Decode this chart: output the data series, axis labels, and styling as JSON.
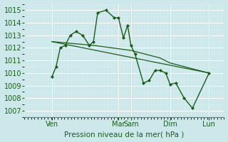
{
  "xlabel": "Pression niveau de la mer( hPa )",
  "bg_color": "#cce8ea",
  "grid_color": "#b0d0d4",
  "line_color": "#1a5c1a",
  "marker_color": "#1a5c1a",
  "vline_color": "#5a8a5a",
  "ylim": [
    1006.5,
    1015.5
  ],
  "yticks": [
    1007,
    1008,
    1009,
    1010,
    1011,
    1012,
    1013,
    1014,
    1015
  ],
  "xlim": [
    0,
    240
  ],
  "day_positions": [
    33,
    113,
    128,
    175,
    222
  ],
  "day_labels": [
    "Ven",
    "Mar",
    "Sam",
    "Dim",
    "Lun"
  ],
  "vline_x": [
    33,
    113,
    128,
    175,
    222
  ],
  "series1_x": [
    33,
    38,
    43,
    49,
    55,
    62,
    70,
    78,
    83,
    88,
    98,
    108,
    113,
    119,
    124,
    128,
    133,
    143,
    150,
    157,
    163,
    170,
    175,
    182,
    192,
    202,
    222
  ],
  "series1_y": [
    1009.7,
    1010.5,
    1012.0,
    1012.2,
    1013.0,
    1013.3,
    1013.0,
    1012.2,
    1012.5,
    1014.8,
    1015.0,
    1014.4,
    1014.4,
    1012.8,
    1013.8,
    1012.2,
    1011.5,
    1009.2,
    1009.4,
    1010.2,
    1010.2,
    1010.0,
    1009.1,
    1009.2,
    1008.0,
    1007.2,
    1010.0
  ],
  "series2_x": [
    33,
    83,
    128,
    163,
    175,
    210,
    222
  ],
  "series2_y": [
    1012.5,
    1012.2,
    1011.8,
    1011.2,
    1010.8,
    1010.2,
    1010.0
  ],
  "series3_x": [
    33,
    222
  ],
  "series3_y": [
    1012.5,
    1010.0
  ],
  "tick_color": "#1a5c1a",
  "label_fontsize": 7,
  "xlabel_fontsize": 7.5
}
